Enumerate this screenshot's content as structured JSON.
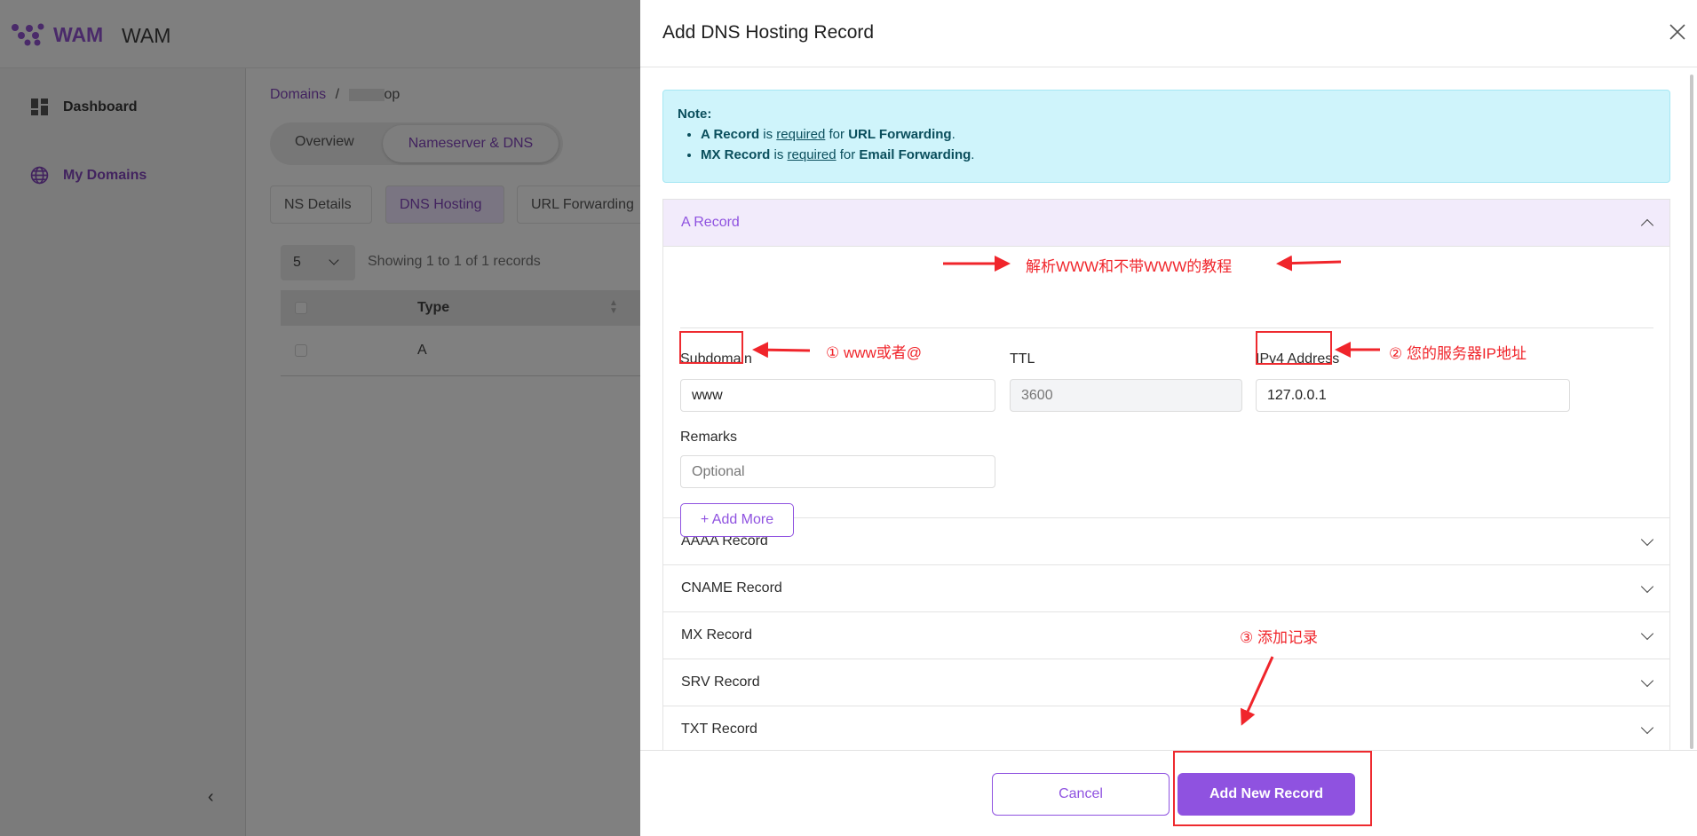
{
  "app": {
    "logo_text": "WAM",
    "title": "WAM"
  },
  "sidebar": {
    "items": [
      {
        "label": "Dashboard",
        "icon": "dashboard-icon"
      },
      {
        "label": "My Domains",
        "icon": "globe-icon"
      }
    ],
    "collapse_icon": "chevron-left-icon"
  },
  "breadcrumb": {
    "root": "Domains",
    "separator": "/",
    "current": "op"
  },
  "main_tabs": [
    {
      "label": "Overview"
    },
    {
      "label": "Nameserver & DNS",
      "active": true
    }
  ],
  "sub_tabs": [
    {
      "label": "NS Details"
    },
    {
      "label": "DNS Hosting",
      "active": true
    },
    {
      "label": "URL Forwarding"
    }
  ],
  "table": {
    "page_size": "5",
    "showing": "Showing 1 to 1 of 1 records",
    "columns": [
      "Type"
    ],
    "rows": [
      [
        "A"
      ]
    ]
  },
  "modal": {
    "title": "Add DNS Hosting Record",
    "note": {
      "heading": "Note:",
      "items": [
        {
          "bold1": "A Record",
          "t1": " is ",
          "link": "required",
          "t2": " for ",
          "bold2": "URL Forwarding",
          "end": "."
        },
        {
          "bold1": "MX Record",
          "t1": " is ",
          "link": "required",
          "t2": " for ",
          "bold2": "Email Forwarding",
          "end": "."
        }
      ]
    },
    "a_record": {
      "title": "A Record",
      "subdomain_label": "Subdomain",
      "subdomain_value": "www",
      "ttl_label": "TTL",
      "ttl_value": "3600",
      "ipv4_label": "IPv4 Address",
      "ipv4_value": "127.0.0.1",
      "remarks_label": "Remarks",
      "remarks_placeholder": "Optional",
      "add_more": "+ Add More"
    },
    "records": [
      "AAAA Record",
      "CNAME Record",
      "MX Record",
      "SRV Record",
      "TXT Record"
    ],
    "cancel": "Cancel",
    "submit": "Add New Record"
  },
  "annotations": {
    "title": "解析WWW和不带WWW的教程",
    "step1": "① www或者@",
    "step2": "② 您的服务器IP地址",
    "step3": "③ 添加记录",
    "color": "#f0252b"
  },
  "colors": {
    "primary": "#8f52e0",
    "note_bg": "#cff4fb",
    "accordion_active_bg": "#f2ebfb"
  }
}
